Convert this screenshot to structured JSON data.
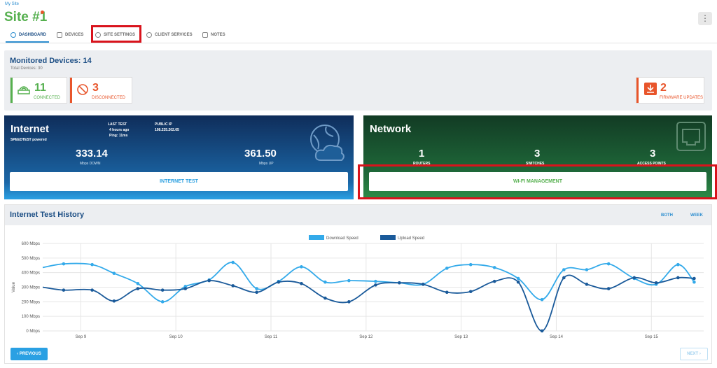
{
  "breadcrumb": "My Site",
  "site_title": "Site #1",
  "kebab_icon": "⋮",
  "tabs": [
    {
      "label": "DASHBOARD",
      "icon": "dashboard-icon"
    },
    {
      "label": "DEVICES",
      "icon": "devices-icon"
    },
    {
      "label": "SITE SETTINGS",
      "icon": "gear-icon"
    },
    {
      "label": "CLIENT SERVICES",
      "icon": "client-services-icon"
    },
    {
      "label": "NOTES",
      "icon": "notes-icon"
    }
  ],
  "monitored": {
    "title": "Monitored Devices: 14",
    "total": "Total Devices: 30",
    "connected": {
      "count": "11",
      "label": "CONNECTED",
      "color": "#56b04f"
    },
    "disconnected": {
      "count": "3",
      "label": "DISCONNECTED",
      "color": "#e8552b"
    },
    "firmware": {
      "count": "2",
      "label": "FIRMWARE UPDATES",
      "color": "#e8552b"
    }
  },
  "internet": {
    "title": "Internet",
    "speedtest": "SPEEDTEST powered",
    "last_test_label": "LAST TEST",
    "last_test_value": "4 hours ago",
    "ping": "Ping: 11ms",
    "public_ip_label": "PUBLIC IP",
    "public_ip_value": "108.235.202.65",
    "down_value": "333.14",
    "down_label": "Mbps DOWN",
    "up_value": "361.50",
    "up_label": "Mbps UP",
    "button": "INTERNET TEST"
  },
  "network": {
    "title": "Network",
    "routers": {
      "count": "1",
      "label": "ROUTERS"
    },
    "switches": {
      "count": "3",
      "label": "SWITCHES"
    },
    "access_points": {
      "count": "3",
      "label": "ACCESS POINTS"
    },
    "button": "WI-FI MANAGEMENT"
  },
  "history": {
    "title": "Internet Test History",
    "filter_type": "BOTH",
    "filter_range": "WEEK",
    "prev": "PREVIOUS",
    "next": "NEXT"
  },
  "chart_data": {
    "type": "line",
    "title": "",
    "xlabel": "",
    "ylabel": "Value",
    "ylim": [
      0,
      600
    ],
    "y_ticks": [
      "0 Mbps",
      "100 Mbps",
      "200 Mbps",
      "300 Mbps",
      "400 Mbps",
      "500 Mbps",
      "600 Mbps"
    ],
    "x_ticks": [
      "Sep 9",
      "Sep 10",
      "Sep 11",
      "Sep 12",
      "Sep 13",
      "Sep 14",
      "Sep 15"
    ],
    "x_range": [
      8.6,
      15.55
    ],
    "legend_position": "top-center",
    "grid": true,
    "series": [
      {
        "name": "Download Speed",
        "color": "#33aaea",
        "x": [
          8.82,
          9.12,
          9.35,
          9.6,
          9.86,
          10.1,
          10.35,
          10.6,
          10.85,
          11.08,
          11.32,
          11.57,
          11.82,
          12.1,
          12.35,
          12.6,
          12.85,
          13.1,
          13.35,
          13.6,
          13.85,
          14.08,
          14.32,
          14.55,
          14.82,
          15.05,
          15.28,
          15.45
        ],
        "values": [
          460,
          455,
          395,
          325,
          200,
          305,
          350,
          470,
          290,
          340,
          440,
          335,
          345,
          340,
          330,
          320,
          430,
          455,
          435,
          360,
          215,
          420,
          420,
          460,
          360,
          320,
          455,
          335
        ]
      },
      {
        "name": "Upload Speed",
        "color": "#1a5a9a",
        "x": [
          8.82,
          9.12,
          9.35,
          9.6,
          9.86,
          10.1,
          10.35,
          10.6,
          10.85,
          11.08,
          11.32,
          11.57,
          11.82,
          12.1,
          12.35,
          12.6,
          12.85,
          13.1,
          13.35,
          13.6,
          13.85,
          14.08,
          14.32,
          14.55,
          14.82,
          15.05,
          15.28,
          15.45
        ],
        "values": [
          280,
          280,
          205,
          290,
          280,
          290,
          345,
          310,
          265,
          335,
          325,
          225,
          200,
          315,
          330,
          320,
          265,
          270,
          340,
          335,
          0,
          365,
          320,
          290,
          365,
          330,
          365,
          360
        ]
      }
    ]
  }
}
